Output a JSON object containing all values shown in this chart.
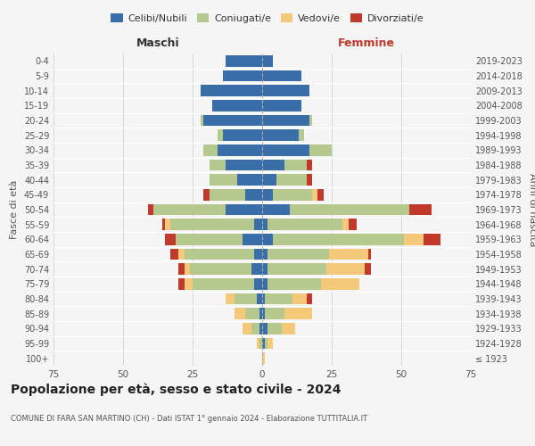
{
  "age_groups": [
    "100+",
    "95-99",
    "90-94",
    "85-89",
    "80-84",
    "75-79",
    "70-74",
    "65-69",
    "60-64",
    "55-59",
    "50-54",
    "45-49",
    "40-44",
    "35-39",
    "30-34",
    "25-29",
    "20-24",
    "15-19",
    "10-14",
    "5-9",
    "0-4"
  ],
  "birth_years": [
    "≤ 1923",
    "1924-1928",
    "1929-1933",
    "1934-1938",
    "1939-1943",
    "1944-1948",
    "1949-1953",
    "1954-1958",
    "1959-1963",
    "1964-1968",
    "1969-1973",
    "1974-1978",
    "1979-1983",
    "1984-1988",
    "1989-1993",
    "1994-1998",
    "1999-2003",
    "2004-2008",
    "2009-2013",
    "2014-2018",
    "2019-2023"
  ],
  "colors": {
    "celibi": "#3a6ea8",
    "coniugati": "#b5c98e",
    "vedovi": "#f5c97a",
    "divorziati": "#c0392b"
  },
  "males": {
    "celibi": [
      0,
      0,
      1,
      1,
      2,
      3,
      4,
      3,
      7,
      3,
      13,
      6,
      9,
      13,
      16,
      14,
      21,
      18,
      22,
      14,
      13
    ],
    "coniugati": [
      0,
      1,
      3,
      5,
      8,
      22,
      22,
      25,
      24,
      30,
      26,
      13,
      10,
      6,
      5,
      2,
      1,
      0,
      0,
      0,
      0
    ],
    "vedovi": [
      0,
      1,
      3,
      4,
      3,
      3,
      2,
      2,
      0,
      2,
      0,
      0,
      0,
      0,
      0,
      0,
      0,
      0,
      0,
      0,
      0
    ],
    "divorziati": [
      0,
      0,
      0,
      0,
      0,
      2,
      2,
      3,
      4,
      1,
      2,
      2,
      0,
      0,
      0,
      0,
      0,
      0,
      0,
      0,
      0
    ]
  },
  "females": {
    "celibi": [
      0,
      1,
      2,
      1,
      1,
      2,
      2,
      2,
      4,
      2,
      10,
      4,
      5,
      8,
      17,
      13,
      17,
      14,
      17,
      14,
      4
    ],
    "coniugati": [
      0,
      1,
      5,
      7,
      10,
      19,
      21,
      22,
      47,
      27,
      43,
      14,
      11,
      8,
      8,
      2,
      1,
      0,
      0,
      0,
      0
    ],
    "vedovi": [
      1,
      2,
      5,
      10,
      5,
      14,
      14,
      14,
      7,
      2,
      0,
      2,
      0,
      0,
      0,
      0,
      0,
      0,
      0,
      0,
      0
    ],
    "divorziati": [
      0,
      0,
      0,
      0,
      2,
      0,
      2,
      1,
      6,
      3,
      8,
      2,
      2,
      2,
      0,
      0,
      0,
      0,
      0,
      0,
      0
    ]
  },
  "xlim": 75,
  "title": "Popolazione per età, sesso e stato civile - 2024",
  "subtitle": "COMUNE DI FARA SAN MARTINO (CH) - Dati ISTAT 1° gennaio 2024 - Elaborazione TUTTITALIA.IT",
  "ylabel_left": "Fasce di età",
  "ylabel_right": "Anni di nascita",
  "xlabel_left": "Maschi",
  "xlabel_right": "Femmine",
  "legend_labels": [
    "Celibi/Nubili",
    "Coniugati/e",
    "Vedovi/e",
    "Divorziati/e"
  ],
  "background_color": "#f5f5f5",
  "grid_color": "#cccccc"
}
